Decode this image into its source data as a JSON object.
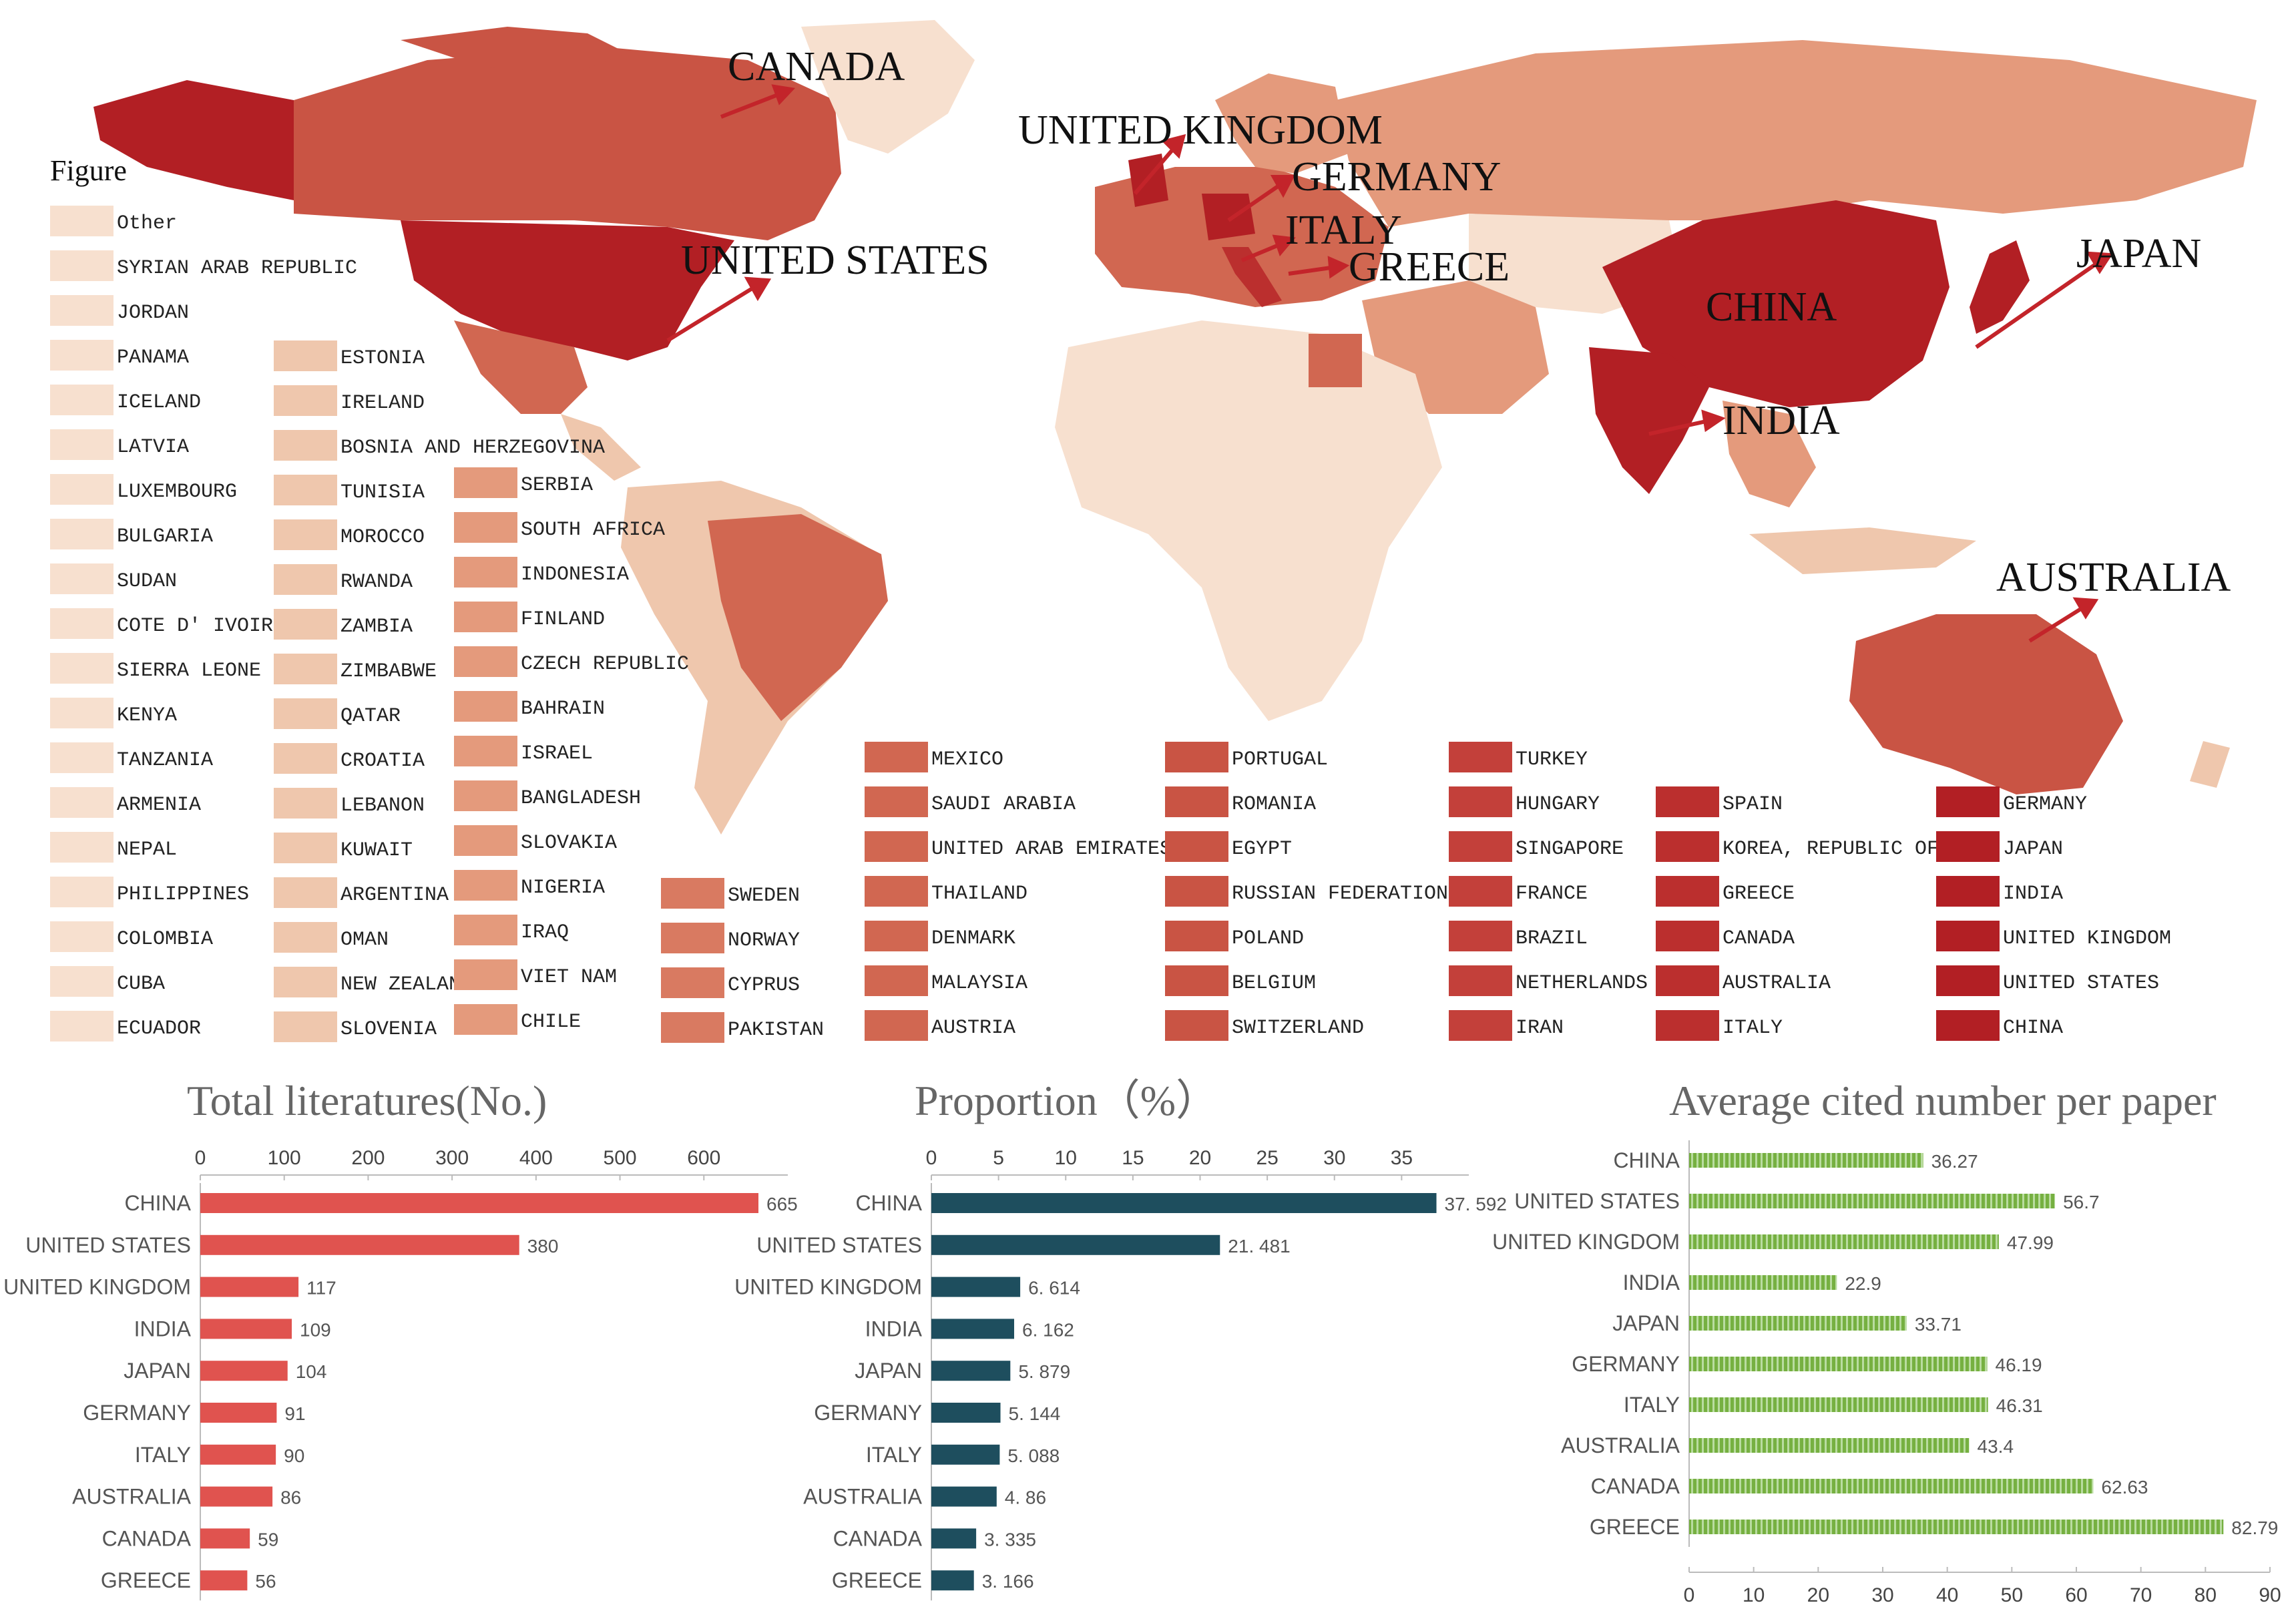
{
  "legend": {
    "title": "Figure",
    "columns": [
      [
        "Other",
        "SYRIAN ARAB REPUBLIC",
        "JORDAN",
        "PANAMA",
        "ICELAND",
        "LATVIA",
        "LUXEMBOURG",
        "BULGARIA",
        "SUDAN",
        "COTE D' IVOIRE",
        "SIERRA LEONE",
        "KENYA",
        "TANZANIA",
        "ARMENIA",
        "NEPAL",
        "PHILIPPINES",
        "COLOMBIA",
        "CUBA",
        "ECUADOR"
      ],
      [
        "ESTONIA",
        "IRELAND",
        "BOSNIA AND HERZEGOVINA",
        "TUNISIA",
        "MOROCCO",
        "RWANDA",
        "ZAMBIA",
        "ZIMBABWE",
        "QATAR",
        "CROATIA",
        "LEBANON",
        "KUWAIT",
        "ARGENTINA",
        "OMAN",
        "NEW ZEALAND",
        "SLOVENIA"
      ],
      [
        "SERBIA",
        "SOUTH AFRICA",
        "INDONESIA",
        "FINLAND",
        "CZECH REPUBLIC",
        "BAHRAIN",
        "ISRAEL",
        "BANGLADESH",
        "SLOVAKIA",
        "NIGERIA",
        "IRAQ",
        "VIET NAM",
        "CHILE"
      ],
      [
        "SWEDEN",
        "NORWAY",
        "CYPRUS",
        "PAKISTAN"
      ],
      [
        "MEXICO",
        "SAUDI ARABIA",
        "UNITED ARAB EMIRATES",
        "THAILAND",
        "DENMARK",
        "MALAYSIA",
        "AUSTRIA"
      ],
      [
        "PORTUGAL",
        "ROMANIA",
        "EGYPT",
        "RUSSIAN FEDERATION",
        "POLAND",
        "BELGIUM",
        "SWITZERLAND"
      ],
      [
        "TURKEY",
        "HUNGARY",
        "SINGAPORE",
        "FRANCE",
        "BRAZIL",
        "NETHERLANDS",
        "IRAN"
      ],
      [
        "SPAIN",
        "KOREA, REPUBLIC OF",
        "GREECE",
        "CANADA",
        "AUSTRALIA",
        "ITALY"
      ],
      [
        "GERMANY",
        "JAPAN",
        "INDIA",
        "UNITED KINGDOM",
        "UNITED STATES",
        "CHINA"
      ]
    ],
    "colors": [
      "#f7e0cf",
      "#efc7ad",
      "#e49a7c",
      "#d97a61",
      "#d16751",
      "#c95444",
      "#c3403a",
      "#bb2f2e",
      "#b21f24"
    ]
  },
  "map_labels": [
    "CANADA",
    "UNITED KINGDOM",
    "GERMANY",
    "ITALY",
    "GREECE",
    "UNITED STATES",
    "CHINA",
    "JAPAN",
    "INDIA",
    "AUSTRALIA"
  ],
  "chart_data": [
    {
      "type": "bar",
      "orientation": "horizontal",
      "title": "Total literatures(No.)",
      "categories": [
        "CHINA",
        "UNITED STATES",
        "UNITED KINGDOM",
        "INDIA",
        "JAPAN",
        "GERMANY",
        "ITALY",
        "AUSTRALIA",
        "CANADA",
        "GREECE"
      ],
      "values": [
        665,
        380,
        117,
        109,
        104,
        91,
        90,
        86,
        59,
        56
      ],
      "value_labels": [
        "665",
        "380",
        "117",
        "109",
        "104",
        "91",
        "90",
        "86",
        "59",
        "56"
      ],
      "xticks": [
        "0",
        "100",
        "200",
        "300",
        "400",
        "500",
        "600"
      ],
      "xlim": [
        0,
        700
      ],
      "axis_position": "top",
      "color": "#e0534f"
    },
    {
      "type": "bar",
      "orientation": "horizontal",
      "title": "Proportion（%）",
      "categories": [
        "CHINA",
        "UNITED STATES",
        "UNITED KINGDOM",
        "INDIA",
        "JAPAN",
        "GERMANY",
        "ITALY",
        "AUSTRALIA",
        "CANADA",
        "GREECE"
      ],
      "values": [
        37.592,
        21.481,
        6.614,
        6.162,
        5.879,
        5.144,
        5.088,
        4.86,
        3.335,
        3.166
      ],
      "value_labels": [
        "37. 592",
        "21. 481",
        "6. 614",
        "6. 162",
        "5. 879",
        "5. 144",
        "5. 088",
        "4. 86",
        "3. 335",
        "3. 166"
      ],
      "xticks": [
        "0",
        "5",
        "10",
        "15",
        "20",
        "25",
        "30",
        "35"
      ],
      "xlim": [
        0,
        40
      ],
      "axis_position": "top",
      "color": "#1e4e5e"
    },
    {
      "type": "bar",
      "orientation": "horizontal",
      "title": "Average cited number per paper",
      "categories": [
        "CHINA",
        "UNITED STATES",
        "UNITED KINGDOM",
        "INDIA",
        "JAPAN",
        "GERMANY",
        "ITALY",
        "AUSTRALIA",
        "CANADA",
        "GREECE"
      ],
      "values": [
        36.27,
        56.7,
        47.99,
        22.9,
        33.71,
        46.19,
        46.31,
        43.4,
        62.63,
        82.79
      ],
      "value_labels": [
        "36.27",
        "56.7",
        "47.99",
        "22.9",
        "33.71",
        "46.19",
        "46.31",
        "43.4",
        "62.63",
        "82.79"
      ],
      "xticks": [
        "0",
        "10",
        "20",
        "30",
        "40",
        "50",
        "60",
        "70",
        "80",
        "90"
      ],
      "xlim": [
        0,
        90
      ],
      "axis_position": "bottom",
      "color": "#76b041"
    }
  ]
}
